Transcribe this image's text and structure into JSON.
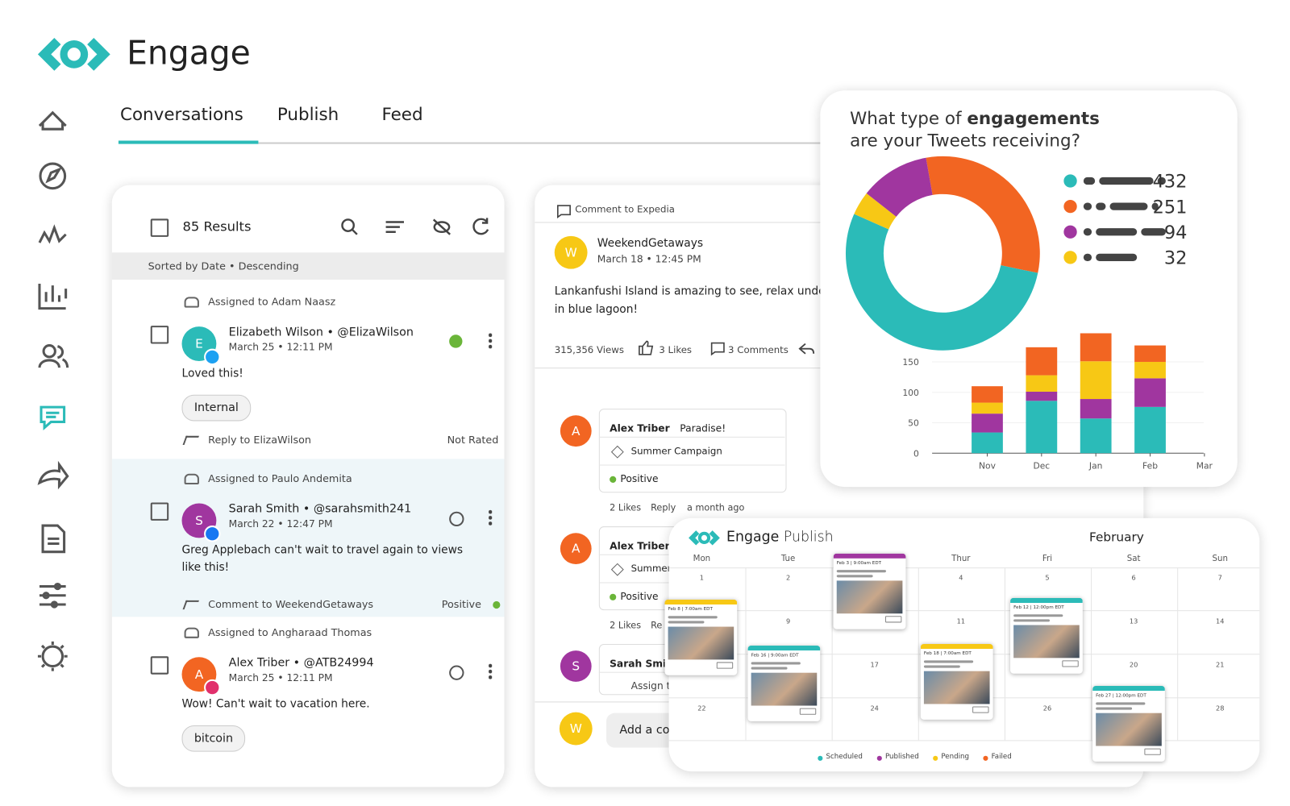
{
  "app": {
    "title": "Engage"
  },
  "tabs": [
    "Conversations",
    "Publish",
    "Feed"
  ],
  "inbox": {
    "results": "85 Results",
    "sort": "Sorted by Date • Descending",
    "items": [
      {
        "assigned": "Assigned to Adam Naasz",
        "initial": "E",
        "name": "Elizabeth Wilson • @ElizaWilson",
        "date": "March 25 • 12:11 PM",
        "text": [
          "Loved this!"
        ],
        "tag": "Internal",
        "reply": "Reply to ElizaWilson",
        "rating": "Not Rated"
      },
      {
        "assigned": "Assigned to Paulo Andemita",
        "initial": "S",
        "name": "Sarah Smith • @sarahsmith241",
        "date": "March 22 • 12:47 PM",
        "text": [
          "Greg Applebach can't wait to travel again to views",
          "like this!"
        ],
        "reply": "Comment to WeekendGetaways",
        "rating": "Positive"
      },
      {
        "assigned": "Assigned to Angharaad Thomas",
        "initial": "A",
        "name": "Alex Triber • @ATB24994",
        "date": "March 25 • 12:11 PM",
        "text": [
          "Wow! Can't wait to vacation here."
        ],
        "tag": "bitcoin"
      }
    ]
  },
  "post": {
    "context": "Comment to Expedia",
    "initial": "W",
    "author": "WeekendGetaways",
    "date": "March 18 • 12:45 PM",
    "text": [
      "Lankanfushi Island is amazing to see, relax unde",
      "in blue lagoon!"
    ],
    "views": "315,356 Views",
    "likes": "3 Likes",
    "comments_count": "3 Comments",
    "comments": [
      {
        "initial": "A",
        "name": "Alex Triber",
        "text": "Paradise!",
        "tag": "Summer Campaign",
        "sentiment": "Positive",
        "likes": "2 Likes",
        "reply": "Reply",
        "time": "a month ago"
      },
      {
        "initial": "A",
        "name": "Alex Triber K",
        "tag": "Summer",
        "sentiment": "Positive",
        "likes": "2 Likes",
        "reply": "Re"
      },
      {
        "initial": "S",
        "name": "Sarah Smit",
        "assign": "Assign t"
      }
    ],
    "compose_initial": "W",
    "compose": "Add a co"
  },
  "engagement_panel": {
    "title": [
      "What type of",
      "engagements",
      "are your Tweets receiving?"
    ]
  },
  "chart_data": [
    {
      "type": "donut",
      "values": [
        432,
        251,
        94,
        32
      ],
      "colors": [
        "#2bbbb8",
        "#f26522",
        "#a0369f",
        "#f7c815"
      ]
    },
    {
      "type": "stacked_bar",
      "categories": [
        "Nov",
        "Dec",
        "Jan",
        "Feb",
        "Mar"
      ],
      "series": [
        {
          "color": "#2bbbb8",
          "values": [
            34,
            86,
            57,
            76,
            null
          ]
        },
        {
          "color": "#a0369f",
          "values": [
            31,
            15,
            32,
            47,
            null
          ]
        },
        {
          "color": "#f7c815",
          "values": [
            18,
            27,
            62,
            27,
            null
          ]
        },
        {
          "color": "#f26522",
          "values": [
            27,
            46,
            46,
            27,
            null
          ]
        }
      ],
      "ylim": [
        0,
        200
      ],
      "yticks": [
        0,
        50,
        100,
        150
      ],
      "grid": true
    }
  ],
  "calendar": {
    "brand": "Engage",
    "product": "Publish",
    "month": "February",
    "days": [
      "Mon",
      "Tue",
      null,
      "Thur",
      "Fri",
      "Sat",
      "Sun"
    ],
    "dates": [
      1,
      2,
      null,
      4,
      5,
      6,
      7,
      null,
      9,
      null,
      11,
      null,
      13,
      14,
      null,
      null,
      17,
      null,
      null,
      20,
      21,
      22,
      null,
      24,
      null,
      26,
      null,
      28
    ],
    "posts": [
      "Feb 8 | 7:00am EDT",
      "Feb 3 | 9:00am EDT",
      "Feb 16 | 9:00am EDT",
      "Feb 18 | 7:00am EDT",
      "Feb 12 | 12:00pm EDT",
      "Feb 27 | 12:00pm EDT"
    ],
    "legend": [
      "Scheduled",
      "Published",
      "Pending",
      "Failed"
    ]
  }
}
